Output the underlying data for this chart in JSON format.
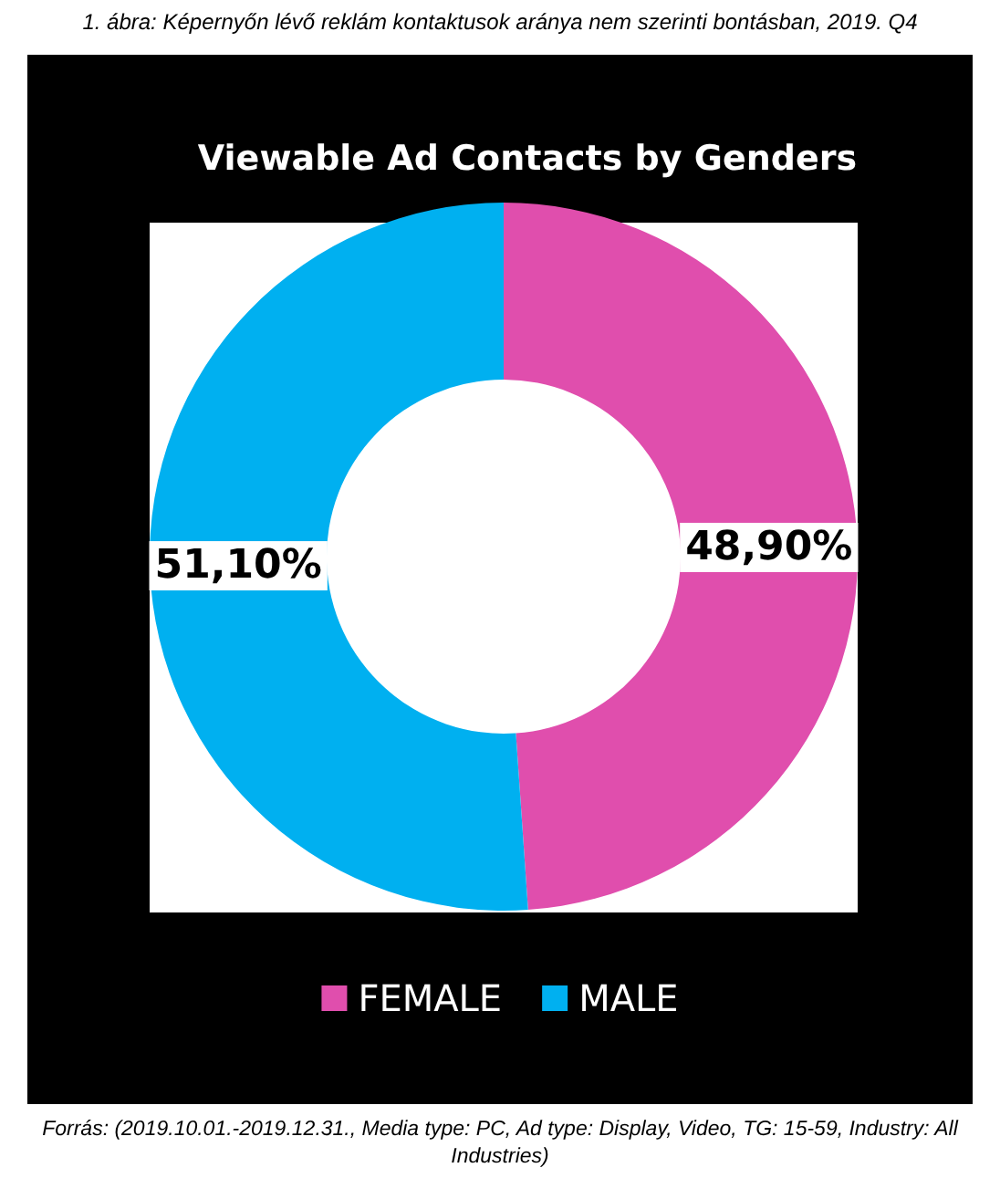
{
  "chart_data": {
    "type": "donut",
    "title": "Viewable Ad Contacts by Genders",
    "categories": [
      "FEMALE",
      "MALE"
    ],
    "values": [
      48.9,
      51.1
    ],
    "colors": [
      "#e04ead",
      "#00b0f0"
    ],
    "value_labels": [
      "48,90%",
      "51,10%"
    ],
    "legend": "bottom",
    "annotations": [
      "1. ábra: Képernyőn lévő reklám kontaktusok aránya nem szerinti bontásban, 2019. Q4",
      "Forrás: (2019.10.01.-2019.12.31., Media type: PC, Ad type: Display, Video, TG: 15-59, Industry: All Industries)"
    ]
  }
}
